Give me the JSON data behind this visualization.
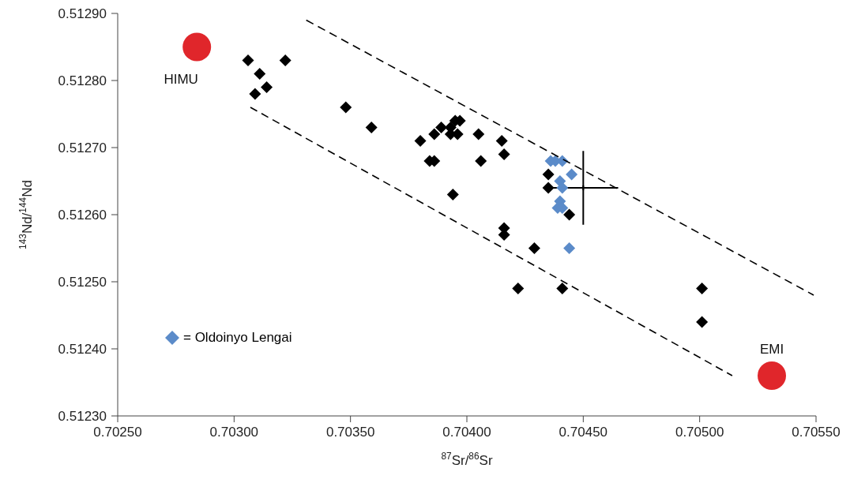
{
  "chart_data": {
    "type": "scatter",
    "xlabel": "$^{87}$Sr/$^{86}$Sr",
    "ylabel": "$^{143}$Nd/$^{144}$Nd",
    "xlim": [
      0.7025,
      0.7055
    ],
    "xticks": [
      {
        "value": 0.7025,
        "label": "0.70250"
      },
      {
        "value": 0.703,
        "label": "0.70300"
      },
      {
        "value": 0.7035,
        "label": "0.70350"
      },
      {
        "value": 0.704,
        "label": "0.70400"
      },
      {
        "value": 0.7045,
        "label": "0.70450"
      },
      {
        "value": 0.705,
        "label": "0.70500"
      },
      {
        "value": 0.7055,
        "label": "0.70550"
      }
    ],
    "ylim": [
      0.5123,
      0.5129
    ],
    "yticks": [
      {
        "value": 0.5123,
        "label": "0.51230"
      },
      {
        "value": 0.5124,
        "label": "0.51240"
      },
      {
        "value": 0.5125,
        "label": "0.51250"
      },
      {
        "value": 0.5126,
        "label": "0.51260"
      },
      {
        "value": 0.5127,
        "label": "0.51270"
      },
      {
        "value": 0.5128,
        "label": "0.51280"
      },
      {
        "value": 0.5129,
        "label": "0.51290"
      }
    ],
    "grid": false,
    "legend": "bottom left",
    "series": [
      {
        "type": "scatter",
        "color": "#000000",
        "marker": "diamond",
        "x": [
          0.70306,
          0.70311,
          0.70309,
          0.70314,
          0.70322,
          0.70348,
          0.70359,
          0.7038,
          0.70384,
          0.70386,
          0.70386,
          0.70389,
          0.70393,
          0.70396,
          0.70395,
          0.70397,
          0.70393,
          0.70405,
          0.70415,
          0.70416,
          0.70406,
          0.70394,
          0.70435,
          0.70435,
          0.70444,
          0.70416,
          0.70416,
          0.70429,
          0.70422,
          0.70441,
          0.70501,
          0.70501
        ],
        "values": [
          0.51283,
          0.51281,
          0.51278,
          0.51279,
          0.51283,
          0.51276,
          0.51273,
          0.51271,
          0.51268,
          0.51268,
          0.51272,
          0.51273,
          0.51272,
          0.51272,
          0.51274,
          0.51274,
          0.51273,
          0.51272,
          0.51271,
          0.51269,
          0.51268,
          0.51263,
          0.51266,
          0.51264,
          0.5126,
          0.51258,
          0.51257,
          0.51255,
          0.51249,
          0.51249,
          0.51249,
          0.51244
        ]
      },
      {
        "type": "scatter",
        "name": "= Oldoinyo Lengai",
        "color": "#5b8bc9",
        "marker": "diamond",
        "x": [
          0.70436,
          0.70438,
          0.70441,
          0.70445,
          0.7044,
          0.70441,
          0.7044,
          0.70439,
          0.70441,
          0.70444
        ],
        "values": [
          0.51268,
          0.51268,
          0.51268,
          0.51266,
          0.51265,
          0.51264,
          0.51262,
          0.51261,
          0.51261,
          0.51255
        ]
      },
      {
        "type": "scatter",
        "color": "#e0262b",
        "marker": "circle",
        "x": [
          0.70284,
          0.70531
        ],
        "values": [
          0.51285,
          0.51236
        ]
      },
      {
        "type": "scatter",
        "color": "#000000",
        "marker": "cross",
        "x": [
          0.7045
        ],
        "values": [
          0.51264
        ],
        "errors": [
          5.5e-05
        ],
        "xerrors": [
          0.00015
        ]
      },
      {
        "type": "line",
        "color": "#000000",
        "line_style": "dashed",
        "marker": "none",
        "x": [
          0.70331,
          0.70549
        ],
        "values": [
          0.51289,
          0.51248
        ]
      },
      {
        "type": "line",
        "color": "#000000",
        "line_style": "dashed",
        "marker": "none",
        "x": [
          0.70307,
          0.70514
        ],
        "values": [
          0.51276,
          0.51236
        ]
      }
    ],
    "annotations": [
      {
        "text": "HIMU",
        "x": 0.70284,
        "y": 0.51285
      },
      {
        "text": "EMI",
        "x": 0.70531,
        "y": 0.51236
      }
    ]
  }
}
